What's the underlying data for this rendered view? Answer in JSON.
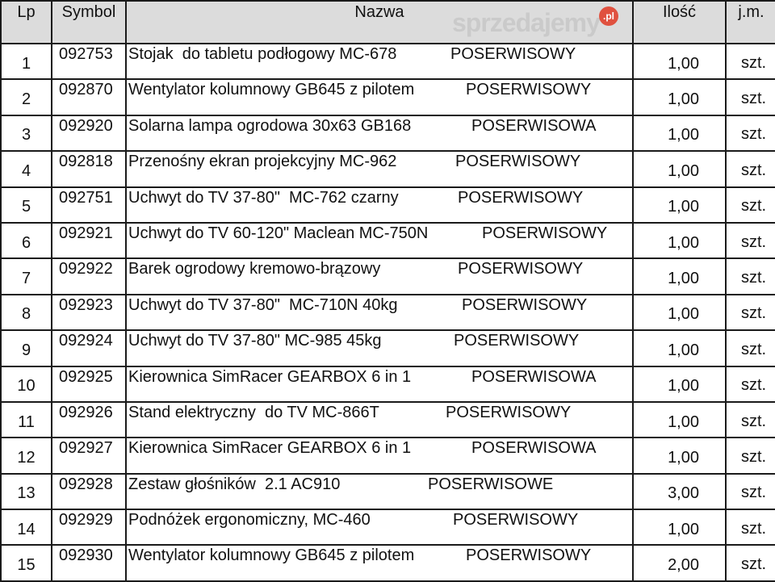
{
  "headers": {
    "lp": "Lp",
    "symbol": "Symbol",
    "name": "Nazwa",
    "qty": "Ilość",
    "unit": "j.m."
  },
  "rows": [
    {
      "lp": "1",
      "symbol": "092753",
      "name": "Stojak  do tabletu podłogowy MC-678",
      "status": "POSERWISOWY",
      "qty": "1,00",
      "unit": "szt."
    },
    {
      "lp": "2",
      "symbol": "092870",
      "name": "Wentylator kolumnowy GB645 z pilotem",
      "status": "POSERWISOWY",
      "qty": "1,00",
      "unit": "szt."
    },
    {
      "lp": "3",
      "symbol": "092920",
      "name": "Solarna lampa ogrodowa 30x63 GB168",
      "status": "POSERWISOWA",
      "qty": "1,00",
      "unit": "szt."
    },
    {
      "lp": "4",
      "symbol": "092818",
      "name": "Przenośny ekran projekcyjny MC-962",
      "status": "POSERWISOWY",
      "qty": "1,00",
      "unit": "szt."
    },
    {
      "lp": "5",
      "symbol": "092751",
      "name": "Uchwyt do TV 37-80\"  MC-762 czarny",
      "status": "POSERWISOWY",
      "qty": "1,00",
      "unit": "szt."
    },
    {
      "lp": "6",
      "symbol": "092921",
      "name": "Uchwyt do TV 60-120\" Maclean MC-750N",
      "status": "POSERWISOWY",
      "qty": "1,00",
      "unit": "szt."
    },
    {
      "lp": "7",
      "symbol": "092922",
      "name": "Barek ogrodowy kremowo-brązowy",
      "status": "POSERWISOWY",
      "qty": "1,00",
      "unit": "szt."
    },
    {
      "lp": "8",
      "symbol": "092923",
      "name": "Uchwyt do TV 37-80\"  MC-710N 40kg",
      "status": "POSERWISOWY",
      "qty": "1,00",
      "unit": "szt."
    },
    {
      "lp": "9",
      "symbol": "092924",
      "name": "Uchwyt do TV 37-80\" MC-985 45kg",
      "status": "POSERWISOWY",
      "qty": "1,00",
      "unit": "szt."
    },
    {
      "lp": "10",
      "symbol": "092925",
      "name": "Kierownica SimRacer GEARBOX 6 in 1",
      "status": "POSERWISOWA",
      "qty": "1,00",
      "unit": "szt."
    },
    {
      "lp": "11",
      "symbol": "092926",
      "name": "Stand elektryczny  do TV MC-866T",
      "status": "POSERWISOWY",
      "qty": "1,00",
      "unit": "szt."
    },
    {
      "lp": "12",
      "symbol": "092927",
      "name": "Kierownica SimRacer GEARBOX 6 in 1",
      "status": "POSERWISOWA",
      "qty": "1,00",
      "unit": "szt."
    },
    {
      "lp": "13",
      "symbol": "092928",
      "name": "Zestaw głośników  2.1 AC910",
      "status": "POSERWISOWE",
      "qty": "3,00",
      "unit": "szt."
    },
    {
      "lp": "14",
      "symbol": "092929",
      "name": "Podnóżek ergonomiczny, MC-460",
      "status": "POSERWISOWY",
      "qty": "1,00",
      "unit": "szt."
    },
    {
      "lp": "15",
      "symbol": "092930",
      "name": "Wentylator kolumnowy GB645 z pilotem",
      "status": "POSERWISOWY",
      "qty": "2,00",
      "unit": "szt."
    }
  ],
  "watermark": {
    "text": "sprzedajemy",
    "badge": ".pl"
  }
}
